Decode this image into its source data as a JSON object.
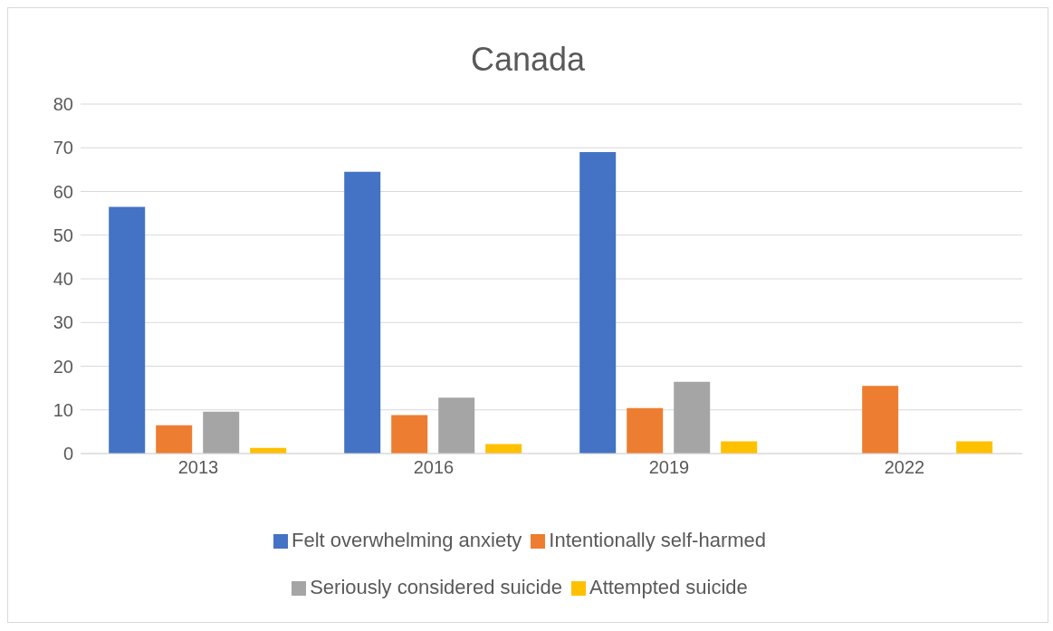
{
  "chart_data": {
    "type": "bar",
    "title": "Canada",
    "categories": [
      "2013",
      "2016",
      "2019",
      "2022"
    ],
    "series": [
      {
        "name": "Felt overwhelming anxiety",
        "color": "#4472c4",
        "values": [
          56.5,
          64.5,
          69,
          null
        ]
      },
      {
        "name": "Intentionally self-harmed",
        "color": "#ed7d31",
        "values": [
          6.5,
          8.8,
          10.4,
          15.5
        ]
      },
      {
        "name": "Seriously considered suicide",
        "color": "#a5a5a5",
        "values": [
          9.6,
          12.8,
          16.4,
          null
        ]
      },
      {
        "name": "Attempted suicide",
        "color": "#ffc000",
        "values": [
          1.3,
          2.2,
          2.8,
          2.8
        ]
      }
    ],
    "ylim": [
      0,
      80
    ],
    "yticks": [
      0,
      10,
      20,
      30,
      40,
      50,
      60,
      70,
      80
    ],
    "grid": "y",
    "legend": "bottom"
  }
}
